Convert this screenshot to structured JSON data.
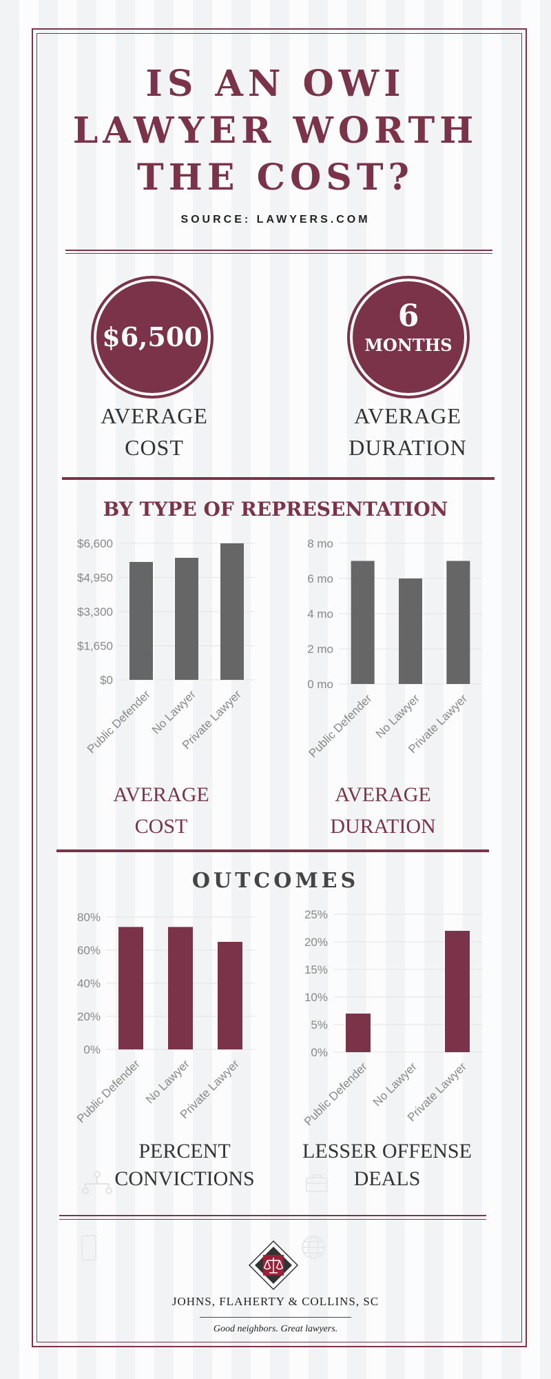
{
  "header": {
    "title_lines": [
      "IS AN OWI",
      "LAWYER WORTH",
      "THE COST?"
    ],
    "source": "SOURCE: LAWYERS.COM"
  },
  "stats": {
    "cost_value": "$6,500",
    "cost_label_lines": [
      "AVERAGE",
      "COST"
    ],
    "duration_number": "6",
    "duration_unit": "MONTHS",
    "duration_label_lines": [
      "AVERAGE",
      "DURATION"
    ]
  },
  "sections": {
    "representation_title": "BY TYPE OF REPRESENTATION",
    "outcomes_title": "OUTCOMES"
  },
  "chart_labels": {
    "cost": [
      "AVERAGE",
      "COST"
    ],
    "duration": [
      "AVERAGE",
      "DURATION"
    ],
    "convictions": [
      "PERCENT",
      "CONVICTIONS"
    ],
    "lesser": [
      "LESSER OFFENSE",
      "DEALS"
    ]
  },
  "footer": {
    "firm_name": "JOHNS, FLAHERTY & COLLINS, SC",
    "tagline": "Good neighbors. Great lawyers."
  },
  "colors": {
    "accent": "#7a3349",
    "bar_gray": "#666666",
    "text_dark": "#333333"
  },
  "chart_data": [
    {
      "id": "cost",
      "type": "bar",
      "categories": [
        "Public Defender",
        "No Lawyer",
        "Private Lawyer"
      ],
      "values": [
        5700,
        5900,
        6600
      ],
      "yticks": [
        "$0",
        "$1,650",
        "$3,300",
        "$4,950",
        "$6,600"
      ],
      "ylim": [
        0,
        6600
      ],
      "bar_color": "#666666",
      "grid": true
    },
    {
      "id": "duration",
      "type": "bar",
      "categories": [
        "Public Defender",
        "No Lawyer",
        "Private Lawyer"
      ],
      "values": [
        7,
        6,
        7
      ],
      "yticks": [
        "0 mo",
        "2 mo",
        "4 mo",
        "6 mo",
        "8 mo"
      ],
      "ylim": [
        0,
        8
      ],
      "bar_color": "#666666",
      "grid": true
    },
    {
      "id": "convictions",
      "type": "bar",
      "categories": [
        "Public Defender",
        "No Lawyer",
        "Private Lawyer"
      ],
      "values": [
        74,
        74,
        65
      ],
      "yticks": [
        "0%",
        "20%",
        "40%",
        "60%",
        "80%"
      ],
      "ylim": [
        0,
        80
      ],
      "bar_color": "#7a3349",
      "grid": true
    },
    {
      "id": "lesser",
      "type": "bar",
      "categories": [
        "Public Defender",
        "No Lawyer",
        "Private Lawyer"
      ],
      "values": [
        7,
        0,
        22
      ],
      "yticks": [
        "0%",
        "5%",
        "10%",
        "15%",
        "20%",
        "25%"
      ],
      "ylim": [
        0,
        25
      ],
      "bar_color": "#7a3349",
      "grid": true
    }
  ]
}
